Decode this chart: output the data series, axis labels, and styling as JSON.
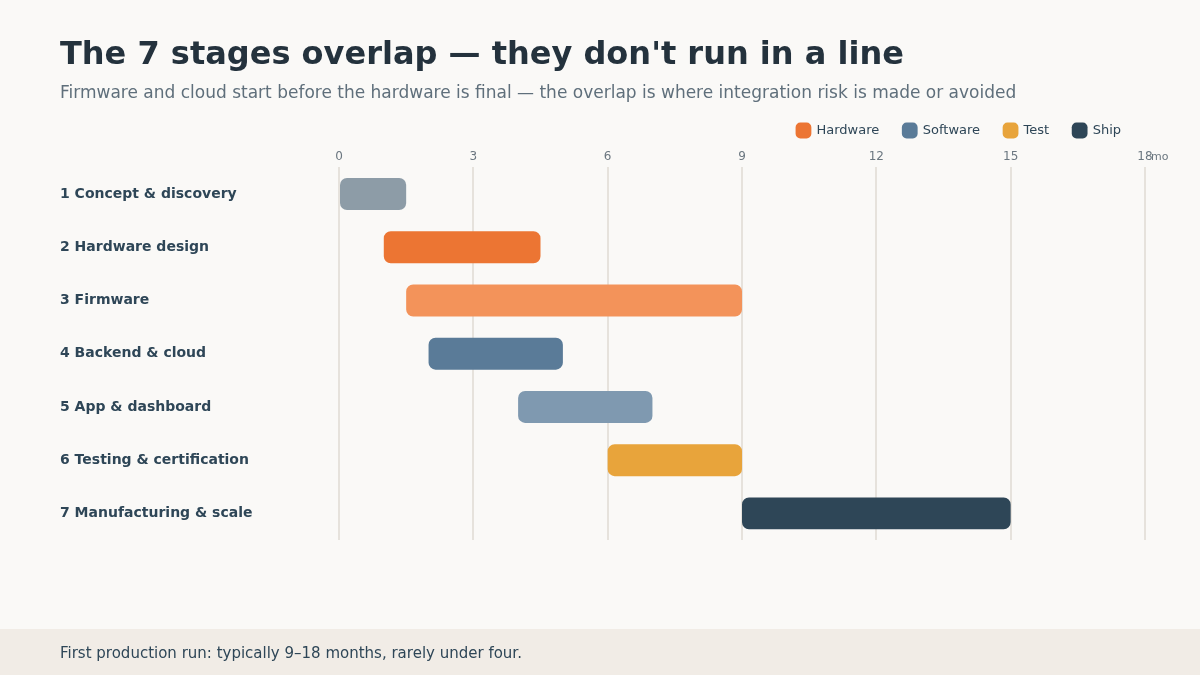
{
  "chart_data": {
    "type": "bar",
    "orientation": "horizontal",
    "title": "The 7 stages overlap — they don't run in a line",
    "subtitle": "Firmware and cloud start before the hardware is final — the overlap is where integration risk is made or avoided",
    "categories": [
      "1 Concept & discovery",
      "2 Hardware design",
      "3 Firmware",
      "4 Backend & cloud",
      "5 App & dashboard",
      "6 Testing & certification",
      "7 Manufacturing & scale"
    ],
    "series": [
      {
        "color": "#8d9ca7",
        "values": [
          1.5,
          null,
          null,
          null,
          null,
          null,
          null
        ],
        "base": [
          0,
          null,
          null,
          null,
          null,
          null,
          null
        ]
      },
      {
        "name": "Hardware",
        "color": "#ec7533",
        "colors": [
          null,
          "#ec7533",
          "#f3935a",
          null,
          null,
          null,
          null
        ],
        "values": [
          null,
          3.5,
          7.5,
          null,
          null,
          null,
          null
        ],
        "base": [
          null,
          1,
          1.5,
          null,
          null,
          null,
          null
        ]
      },
      {
        "name": "Software",
        "color": "#5a7b98",
        "colors": [
          null,
          null,
          null,
          "#5a7b98",
          "#7f99b0",
          null,
          null
        ],
        "values": [
          null,
          null,
          null,
          3,
          3,
          null,
          null
        ],
        "base": [
          null,
          null,
          null,
          2,
          4,
          null,
          null
        ]
      },
      {
        "name": "Test",
        "color": "#e8a43b",
        "values": [
          null,
          null,
          null,
          null,
          null,
          3,
          null
        ],
        "base": [
          null,
          null,
          null,
          null,
          null,
          6,
          null
        ]
      },
      {
        "name": "Ship",
        "color": "#2e4657",
        "values": [
          null,
          null,
          null,
          null,
          null,
          null,
          6
        ],
        "base": [
          null,
          null,
          null,
          null,
          null,
          null,
          9
        ]
      }
    ],
    "xlabel": "mo",
    "xlim": [
      0,
      18
    ],
    "xticks": [
      0,
      3,
      6,
      9,
      12,
      15,
      18
    ],
    "grid": "x",
    "legend": "top right",
    "annotations": [
      "First production run: typically 9–18 months, rarely under four."
    ]
  }
}
